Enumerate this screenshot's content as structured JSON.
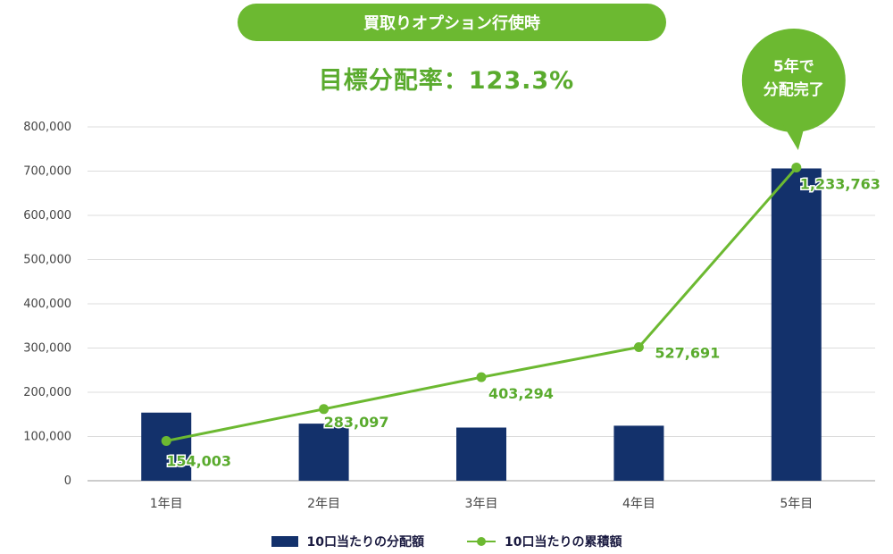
{
  "header": {
    "pill_label": "買取りオプション行使時",
    "target_text": "目標分配率：123.3%"
  },
  "callout": {
    "line1": "5年で",
    "line2": "分配完了"
  },
  "colors": {
    "bar": "#13316b",
    "line": "#6cb931",
    "label": "#5aab2e"
  },
  "chart_data": {
    "type": "bar",
    "categories": [
      "1年目",
      "2年目",
      "3年目",
      "4年目",
      "5年目"
    ],
    "ylim": [
      0,
      800000
    ],
    "yticks": [
      "0",
      "100,000",
      "200,000",
      "300,000",
      "400,000",
      "500,000",
      "600,000",
      "700,000",
      "800,000"
    ],
    "ytick_values": [
      0,
      100000,
      200000,
      300000,
      400000,
      500000,
      600000,
      700000,
      800000
    ],
    "grid": true,
    "legend_position": "bottom",
    "series": [
      {
        "name": "10口当たりの分配額",
        "type": "bar",
        "values": [
          154003,
          129094,
          120197,
          124397,
          706072
        ]
      },
      {
        "name": "10口当たりの累積額",
        "type": "line",
        "values": [
          90000,
          162000,
          234000,
          302000,
          708000
        ],
        "data_labels": [
          "154,003",
          "283,097",
          "403,294",
          "527,691",
          "1,233,763"
        ]
      }
    ]
  }
}
